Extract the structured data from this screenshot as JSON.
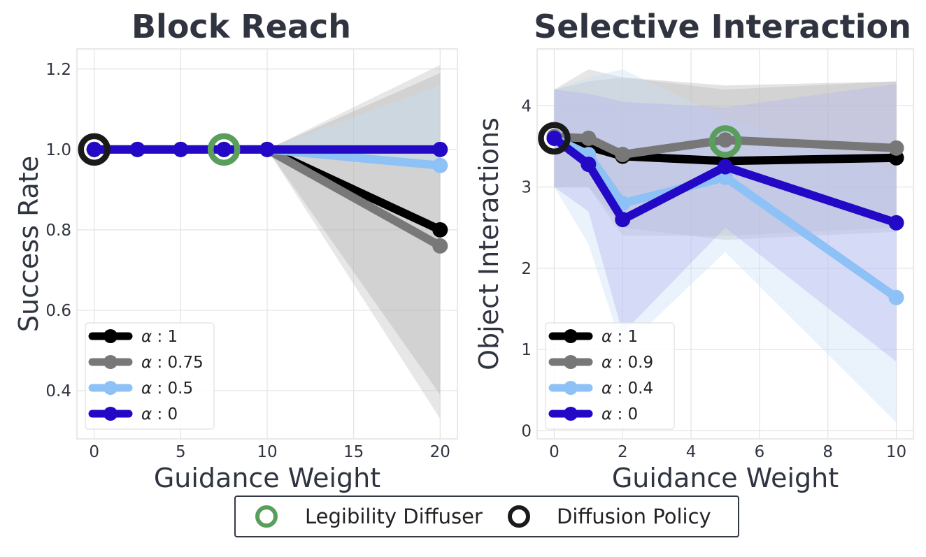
{
  "chart_data": [
    {
      "type": "line",
      "title": "Block Reach",
      "xlabel": "Guidance Weight",
      "ylabel": "Success Rate",
      "xlim": [
        -1,
        21
      ],
      "ylim": [
        0.28,
        1.25
      ],
      "xticks": [
        0,
        5,
        10,
        15,
        20
      ],
      "yticks": [
        0.4,
        0.6,
        0.8,
        1.0,
        1.2
      ],
      "xtick_labels": [
        "0",
        "5",
        "10",
        "15",
        "20"
      ],
      "ytick_labels": [
        "0.4",
        "0.6",
        "0.8",
        "1.0",
        "1.2"
      ],
      "grid": true,
      "legend_position": "bottom-left",
      "series": [
        {
          "name": "1",
          "color": "#000000",
          "band_color": "#bfbfbf",
          "x": [
            0,
            2.5,
            5,
            7.5,
            10,
            20
          ],
          "y": [
            1.0,
            1.0,
            1.0,
            1.0,
            1.0,
            0.8
          ],
          "lower": [
            1.0,
            1.0,
            1.0,
            1.0,
            1.0,
            0.33
          ],
          "upper": [
            1.0,
            1.0,
            1.0,
            1.0,
            1.0,
            1.21
          ]
        },
        {
          "name": "0.75",
          "color": "#787878",
          "band_color": "#b0b0b0",
          "x": [
            0,
            2.5,
            5,
            7.5,
            10,
            20
          ],
          "y": [
            1.0,
            1.0,
            1.0,
            1.0,
            1.0,
            0.76
          ],
          "lower": [
            1.0,
            1.0,
            1.0,
            1.0,
            1.0,
            0.39
          ],
          "upper": [
            1.0,
            1.0,
            1.0,
            1.0,
            1.0,
            1.19
          ]
        },
        {
          "name": "0.5",
          "color": "#8ec1f5",
          "band_color": "#c6dff7",
          "x": [
            0,
            2.5,
            5,
            7.5,
            10,
            20
          ],
          "y": [
            1.0,
            1.0,
            1.0,
            1.0,
            1.0,
            0.96
          ],
          "lower": [
            1.0,
            1.0,
            1.0,
            1.0,
            1.0,
            0.96
          ],
          "upper": [
            1.0,
            1.0,
            1.0,
            1.0,
            1.0,
            1.16
          ]
        },
        {
          "name": "0",
          "color": "#2308c6",
          "band_color": "#b0b0ee",
          "x": [
            0,
            2.5,
            5,
            7.5,
            10,
            20
          ],
          "y": [
            1.0,
            1.0,
            1.0,
            1.0,
            1.0,
            1.0
          ],
          "lower": [
            1.0,
            1.0,
            1.0,
            1.0,
            1.0,
            1.0
          ],
          "upper": [
            1.0,
            1.0,
            1.0,
            1.0,
            1.0,
            1.0
          ]
        }
      ],
      "markers": [
        {
          "label": "Legibility Diffuser",
          "x": 7.5,
          "y": 1.0,
          "color": "#5a9e5e"
        },
        {
          "label": "Diffusion Policy",
          "x": 0,
          "y": 1.0,
          "color": "#1a1a1a"
        }
      ]
    },
    {
      "type": "line",
      "title": "Selective Interaction",
      "xlabel": "Guidance Weight",
      "ylabel": "Object Interactions",
      "xlim": [
        -0.5,
        10.5
      ],
      "ylim": [
        -0.1,
        4.7
      ],
      "xticks": [
        0,
        2,
        4,
        6,
        8,
        10
      ],
      "yticks": [
        0,
        1,
        2,
        3,
        4
      ],
      "xtick_labels": [
        "0",
        "2",
        "4",
        "6",
        "8",
        "10"
      ],
      "ytick_labels": [
        "0",
        "1",
        "2",
        "3",
        "4"
      ],
      "grid": true,
      "legend_position": "bottom-left",
      "series": [
        {
          "name": "1",
          "color": "#000000",
          "band_color": "#bdbdbd",
          "x": [
            0,
            1,
            2,
            5,
            10
          ],
          "y": [
            3.6,
            3.5,
            3.38,
            3.32,
            3.36
          ],
          "lower": [
            3.0,
            3.0,
            2.4,
            2.4,
            2.5
          ],
          "upper": [
            4.2,
            4.45,
            4.35,
            4.2,
            4.3
          ]
        },
        {
          "name": "0.9",
          "color": "#777777",
          "band_color": "#b5b5b5",
          "x": [
            0,
            1,
            2,
            5,
            10
          ],
          "y": [
            3.62,
            3.6,
            3.4,
            3.58,
            3.48
          ],
          "lower": [
            3.0,
            3.0,
            2.5,
            2.35,
            2.45
          ],
          "upper": [
            4.2,
            4.3,
            4.35,
            4.25,
            4.3
          ]
        },
        {
          "name": "0.4",
          "color": "#8ec1f5",
          "band_color": "#c9e0f7",
          "x": [
            0,
            1,
            2,
            5,
            10
          ],
          "y": [
            3.6,
            3.4,
            2.8,
            3.12,
            1.64
          ],
          "lower": [
            3.0,
            2.3,
            1.0,
            2.2,
            0.1
          ],
          "upper": [
            4.2,
            4.35,
            4.45,
            3.85,
            3.2
          ]
        },
        {
          "name": "0",
          "color": "#2308c6",
          "band_color": "#b3b3f0",
          "x": [
            0,
            1,
            2,
            5,
            10
          ],
          "y": [
            3.6,
            3.28,
            2.6,
            3.25,
            2.56
          ],
          "lower": [
            3.0,
            2.7,
            1.2,
            2.5,
            0.85
          ],
          "upper": [
            4.2,
            4.15,
            4.05,
            3.98,
            4.27
          ]
        }
      ],
      "markers": [
        {
          "label": "Legibility Diffuser",
          "x": 5,
          "y": 3.56,
          "color": "#5a9e5e"
        },
        {
          "label": "Diffusion Policy",
          "x": 0,
          "y": 3.6,
          "color": "#1a1a1a"
        }
      ]
    }
  ],
  "legend_symbol": "α",
  "legend_separator": ":",
  "bottom_legend": [
    {
      "label": "Legibility Diffuser",
      "color": "#5a9e5e"
    },
    {
      "label": "Diffusion Policy",
      "color": "#1a1a1a"
    }
  ]
}
